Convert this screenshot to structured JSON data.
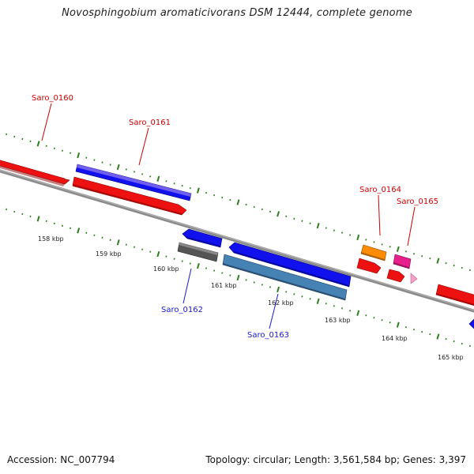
{
  "title": "Novosphingobium aromaticivorans DSM 12444, complete genome",
  "footer": {
    "accession": "Accession: NC_007794",
    "summary": "Topology: circular; Length: 3,561,584 bp; Genes: 3,397"
  },
  "colors": {
    "backbone": "#8a8a8a",
    "tick": "#2e7d1e",
    "label_top": "#cc0000",
    "label_bottom": "#1a1acc"
  },
  "scale_labels": [
    "158 kbp",
    "159 kbp",
    "160 kbp",
    "161 kbp",
    "162 kbp",
    "163 kbp",
    "164 kbp",
    "165 kbp"
  ],
  "genes": [
    {
      "id": "Saro_0160",
      "label": "Saro_0160",
      "strand": "top",
      "color": "#ee1111"
    },
    {
      "id": "Saro_0161",
      "label": "Saro_0161",
      "strand": "top",
      "color": "#ee1111"
    },
    {
      "id": "Saro_0161b",
      "label": "",
      "strand": "top",
      "color": "#1111ee"
    },
    {
      "id": "Saro_0162",
      "label": "Saro_0162",
      "strand": "bottom",
      "color": "#1111ee"
    },
    {
      "id": "Saro_0162b",
      "label": "",
      "strand": "bottom",
      "color": "#555555"
    },
    {
      "id": "Saro_0163",
      "label": "Saro_0163",
      "strand": "bottom",
      "color": "#1111ee"
    },
    {
      "id": "Saro_0163b",
      "label": "",
      "strand": "bottom",
      "color": "#4682b4"
    },
    {
      "id": "Saro_0164",
      "label": "Saro_0164",
      "strand": "top",
      "color": "#ff8c00"
    },
    {
      "id": "Saro_0164b",
      "label": "",
      "strand": "top",
      "color": "#ee1111"
    },
    {
      "id": "Saro_0165",
      "label": "Saro_0165",
      "strand": "top",
      "color": "#e8208c"
    },
    {
      "id": "Saro_0165b",
      "label": "",
      "strand": "top",
      "color": "#ee1111"
    },
    {
      "id": "Saro_0165c",
      "label": "",
      "strand": "top",
      "color": "#f4a0c8"
    },
    {
      "id": "Saro_0166",
      "label": "",
      "strand": "top",
      "color": "#ee1111"
    },
    {
      "id": "Saro_0167",
      "label": "",
      "strand": "bottom",
      "color": "#1111ee"
    }
  ]
}
